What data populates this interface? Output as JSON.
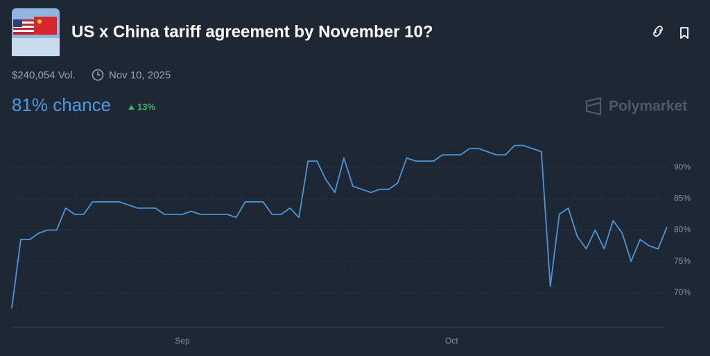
{
  "header": {
    "title": "US x China tariff agreement by November 10?",
    "volume": "$240,054 Vol.",
    "end_date": "Nov 10, 2025",
    "chance": "81% chance",
    "change": "13%",
    "brand": "Polymarket"
  },
  "chart_data": {
    "type": "line",
    "color": "#4c97d8",
    "grid": true,
    "categories": [
      null,
      null,
      null,
      null,
      null,
      null,
      null,
      null,
      null,
      null,
      null,
      null,
      null,
      null,
      null,
      null,
      null,
      null,
      null,
      "Sep",
      null,
      null,
      null,
      null,
      null,
      null,
      null,
      null,
      null,
      null,
      null,
      null,
      null,
      null,
      null,
      null,
      null,
      null,
      null,
      null,
      null,
      null,
      null,
      null,
      null,
      null,
      null,
      null,
      null,
      "Oct",
      null,
      null,
      null,
      null,
      null,
      null,
      null,
      null,
      null,
      null,
      null,
      null,
      null,
      null,
      null,
      null,
      null,
      null,
      null,
      null,
      null,
      null,
      null,
      null
    ],
    "values": [
      67.5,
      78.5,
      78.5,
      79.5,
      80,
      80,
      83.5,
      82.5,
      82.5,
      84.5,
      84.5,
      84.5,
      84.5,
      84,
      83.5,
      83.5,
      83.5,
      82.5,
      82.5,
      82.5,
      83,
      82.5,
      82.5,
      82.5,
      82.5,
      82,
      84.5,
      84.5,
      84.5,
      82.5,
      82.5,
      83.5,
      82,
      91,
      91,
      88,
      86,
      91.5,
      87,
      86.5,
      86,
      86.5,
      86.5,
      87.5,
      91.5,
      91,
      91,
      91,
      92,
      92,
      92,
      93,
      93,
      92.5,
      92,
      92,
      93.5,
      93.5,
      93,
      92.5,
      71,
      82.5,
      83.5,
      79,
      77,
      80,
      77,
      81.5,
      79.5,
      75,
      78.5,
      77.5,
      77,
      80.5
    ],
    "ylim": [
      65,
      95
    ],
    "yticks": [
      {
        "value": 70,
        "label": "70%"
      },
      {
        "value": 75,
        "label": "75%"
      },
      {
        "value": 80,
        "label": "80%"
      },
      {
        "value": 85,
        "label": "85%"
      },
      {
        "value": 90,
        "label": "90%"
      }
    ]
  }
}
